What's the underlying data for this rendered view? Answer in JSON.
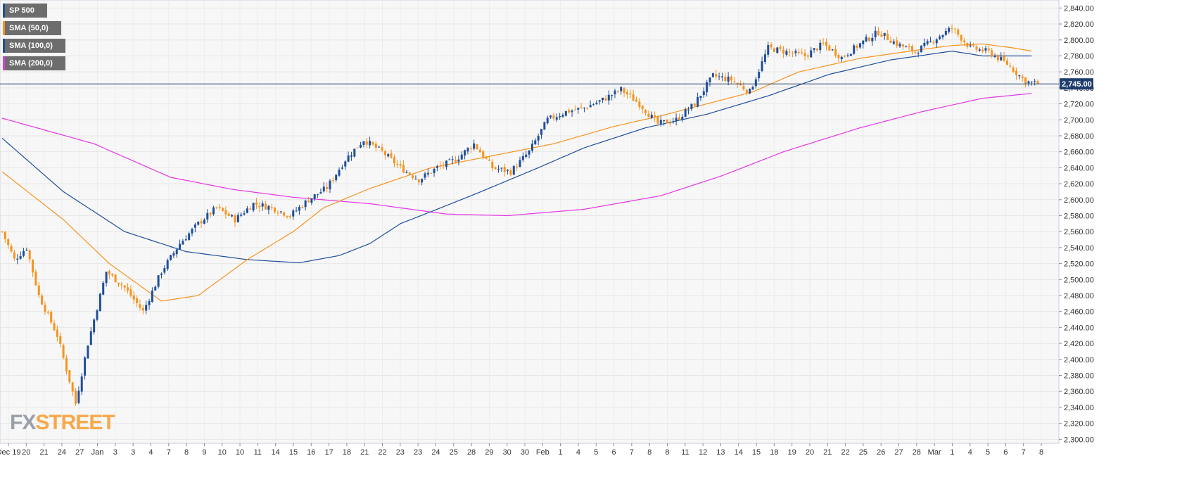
{
  "legend": [
    {
      "label": "SP 500",
      "color": "#1f4e9b"
    },
    {
      "label": "SMA (50,0)",
      "color": "#f7931e"
    },
    {
      "label": "SMA (100,0)",
      "color": "#1f4e9b"
    },
    {
      "label": "SMA (200,0)",
      "color": "#e535e5"
    }
  ],
  "logo": {
    "part1": "FX",
    "part2": "STREET"
  },
  "chart_data": {
    "type": "candlestick",
    "instrument": "SP 500",
    "ylim": [
      2295,
      2850
    ],
    "y_ticks": [
      2300,
      2320,
      2340,
      2360,
      2380,
      2400,
      2420,
      2440,
      2460,
      2480,
      2500,
      2520,
      2540,
      2560,
      2580,
      2600,
      2620,
      2640,
      2660,
      2680,
      2700,
      2720,
      2740,
      2760,
      2780,
      2800,
      2820,
      2840
    ],
    "y_tick_labels": [
      "2,300.00",
      "2,320.00",
      "2,340.00",
      "2,360.00",
      "2,380.00",
      "2,400.00",
      "2,420.00",
      "2,440.00",
      "2,460.00",
      "2,480.00",
      "2,500.00",
      "2,520.00",
      "2,540.00",
      "2,560.00",
      "2,580.00",
      "2,600.00",
      "2,620.00",
      "2,640.00",
      "2,660.00",
      "2,680.00",
      "2,700.00",
      "2,720.00",
      "2,740.00",
      "2,760.00",
      "2,780.00",
      "2,800.00",
      "2,820.00",
      "2,840.00"
    ],
    "x_tick_labels": [
      "Dec 19",
      "20",
      "21",
      "24",
      "27",
      "Jan",
      "3",
      "3",
      "4",
      "7",
      "8",
      "9",
      "10",
      "10",
      "11",
      "14",
      "15",
      "16",
      "17",
      "18",
      "21",
      "22",
      "23",
      "23",
      "24",
      "25",
      "28",
      "29",
      "30",
      "30",
      "Feb",
      "1",
      "4",
      "5",
      "6",
      "7",
      "8",
      "8",
      "11",
      "12",
      "13",
      "14",
      "15",
      "18",
      "19",
      "20",
      "21",
      "22",
      "25",
      "26",
      "27",
      "28",
      "Mar",
      "1",
      "4",
      "5",
      "6",
      "7",
      "8"
    ],
    "current_price": 2745,
    "current_price_label": "2,745.00",
    "candle_color_up": "#1f4e9b",
    "candle_color_down": "#f7931e",
    "close_anchors": [
      [
        0,
        2560
      ],
      [
        4,
        2525
      ],
      [
        8,
        2540
      ],
      [
        12,
        2480
      ],
      [
        18,
        2430
      ],
      [
        24,
        2345
      ],
      [
        28,
        2420
      ],
      [
        34,
        2510
      ],
      [
        40,
        2490
      ],
      [
        46,
        2460
      ],
      [
        52,
        2510
      ],
      [
        58,
        2545
      ],
      [
        64,
        2570
      ],
      [
        70,
        2590
      ],
      [
        76,
        2575
      ],
      [
        82,
        2595
      ],
      [
        88,
        2590
      ],
      [
        94,
        2580
      ],
      [
        100,
        2600
      ],
      [
        106,
        2615
      ],
      [
        112,
        2650
      ],
      [
        118,
        2675
      ],
      [
        124,
        2660
      ],
      [
        130,
        2640
      ],
      [
        136,
        2625
      ],
      [
        142,
        2640
      ],
      [
        148,
        2650
      ],
      [
        154,
        2670
      ],
      [
        160,
        2640
      ],
      [
        166,
        2635
      ],
      [
        172,
        2660
      ],
      [
        178,
        2700
      ],
      [
        184,
        2710
      ],
      [
        190,
        2715
      ],
      [
        196,
        2725
      ],
      [
        202,
        2738
      ],
      [
        208,
        2720
      ],
      [
        214,
        2695
      ],
      [
        220,
        2700
      ],
      [
        226,
        2720
      ],
      [
        232,
        2755
      ],
      [
        238,
        2750
      ],
      [
        244,
        2735
      ],
      [
        250,
        2790
      ],
      [
        256,
        2785
      ],
      [
        262,
        2780
      ],
      [
        268,
        2795
      ],
      [
        274,
        2778
      ],
      [
        280,
        2795
      ],
      [
        286,
        2810
      ],
      [
        292,
        2795
      ],
      [
        298,
        2785
      ],
      [
        304,
        2800
      ],
      [
        310,
        2815
      ],
      [
        316,
        2790
      ],
      [
        322,
        2785
      ],
      [
        328,
        2770
      ],
      [
        334,
        2748
      ],
      [
        338,
        2745
      ]
    ],
    "sma50": [
      [
        0,
        2635
      ],
      [
        20,
        2575
      ],
      [
        35,
        2520
      ],
      [
        52,
        2473
      ],
      [
        64,
        2480
      ],
      [
        80,
        2525
      ],
      [
        95,
        2560
      ],
      [
        105,
        2590
      ],
      [
        120,
        2614
      ],
      [
        140,
        2640
      ],
      [
        160,
        2655
      ],
      [
        180,
        2670
      ],
      [
        200,
        2692
      ],
      [
        215,
        2705
      ],
      [
        230,
        2720
      ],
      [
        245,
        2735
      ],
      [
        260,
        2760
      ],
      [
        280,
        2777
      ],
      [
        300,
        2788
      ],
      [
        310,
        2793
      ],
      [
        320,
        2795
      ],
      [
        330,
        2790
      ],
      [
        336,
        2786
      ]
    ],
    "sma100": [
      [
        0,
        2677
      ],
      [
        20,
        2610
      ],
      [
        40,
        2560
      ],
      [
        60,
        2535
      ],
      [
        80,
        2525
      ],
      [
        97,
        2521
      ],
      [
        110,
        2530
      ],
      [
        120,
        2545
      ],
      [
        130,
        2570
      ],
      [
        140,
        2585
      ],
      [
        155,
        2608
      ],
      [
        175,
        2640
      ],
      [
        190,
        2665
      ],
      [
        210,
        2690
      ],
      [
        230,
        2707
      ],
      [
        250,
        2730
      ],
      [
        270,
        2757
      ],
      [
        290,
        2775
      ],
      [
        310,
        2786
      ],
      [
        320,
        2780
      ],
      [
        330,
        2780
      ],
      [
        336,
        2780
      ]
    ],
    "sma200": [
      [
        0,
        2702
      ],
      [
        30,
        2670
      ],
      [
        55,
        2628
      ],
      [
        75,
        2613
      ],
      [
        95,
        2603
      ],
      [
        120,
        2595
      ],
      [
        145,
        2582
      ],
      [
        165,
        2580
      ],
      [
        190,
        2588
      ],
      [
        215,
        2605
      ],
      [
        235,
        2630
      ],
      [
        255,
        2660
      ],
      [
        280,
        2690
      ],
      [
        300,
        2710
      ],
      [
        320,
        2727
      ],
      [
        336,
        2733
      ]
    ],
    "candle_count": 339,
    "title": "",
    "xlabel": "",
    "ylabel": ""
  }
}
